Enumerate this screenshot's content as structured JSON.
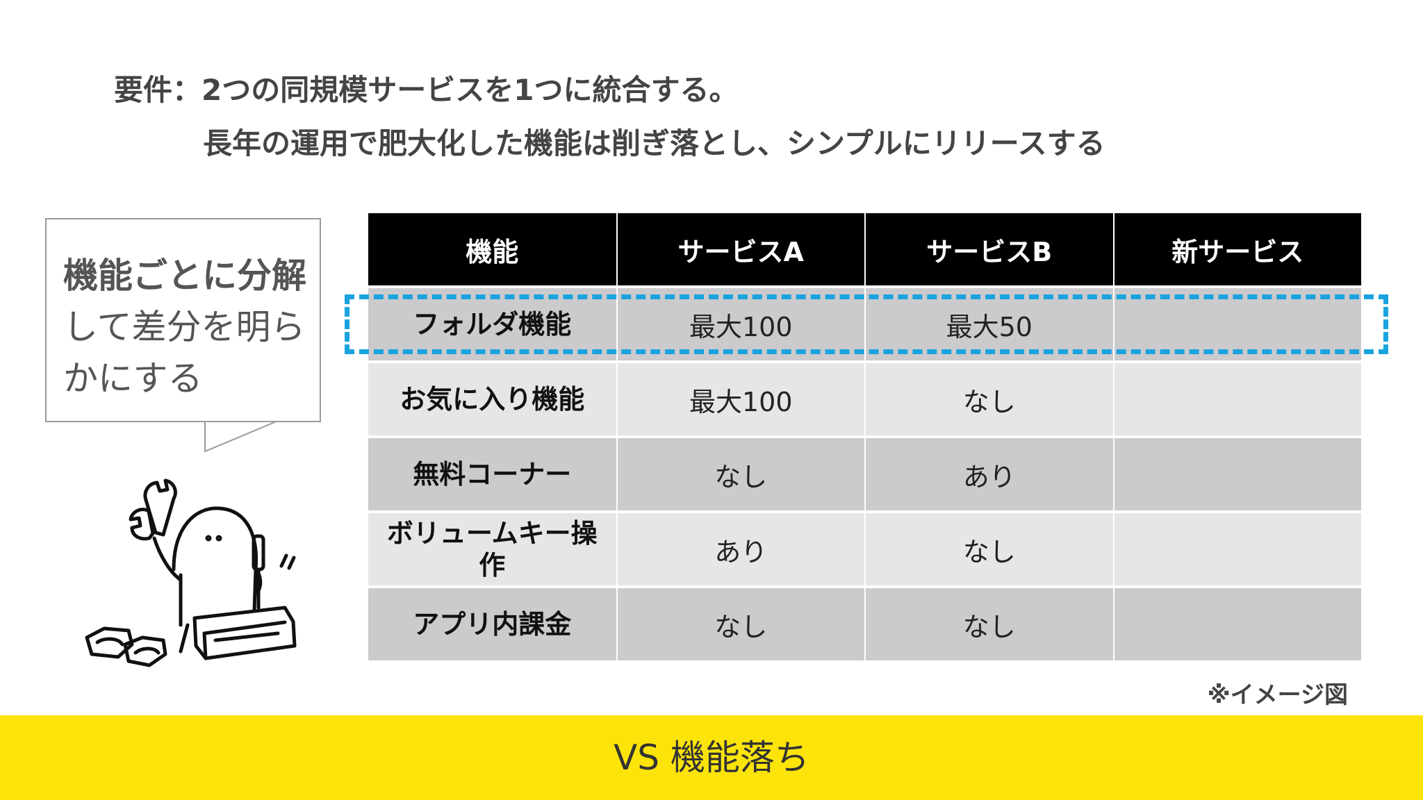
{
  "requirement": {
    "line1": "要件：2つの同規模サービスを1つに統合する。",
    "line2": "長年の運用で肥大化した機能は削ぎ落とし、シンプルにリリースする"
  },
  "bubble": {
    "bold_text": "機能ごとに分解",
    "text": "して差分を明らかにする"
  },
  "table": {
    "headers": [
      "機能",
      "サービスA",
      "サービスB",
      "新サービス"
    ],
    "rows": [
      {
        "feature": "フォルダ機能",
        "service_a": "最大100",
        "service_b": "最大50",
        "new_service": ""
      },
      {
        "feature": "お気に入り機能",
        "service_a": "最大100",
        "service_b": "なし",
        "new_service": ""
      },
      {
        "feature": "無料コーナー",
        "service_a": "なし",
        "service_b": "あり",
        "new_service": ""
      },
      {
        "feature": "ボリュームキー操作",
        "service_a": "あり",
        "service_b": "なし",
        "new_service": ""
      },
      {
        "feature": "アプリ内課金",
        "service_a": "なし",
        "service_b": "なし",
        "new_service": ""
      }
    ],
    "highlighted_row": 0
  },
  "note": "※イメージ図",
  "footer": {
    "text": "VS 機能落ち"
  },
  "colors": {
    "header_bg": "#000000",
    "row_dark": "#cbcacd",
    "row_light": "#e6e5e8",
    "highlight_dash": "#1aa3df",
    "footer_bg": "#fce40a"
  },
  "icons": {
    "mascot": "mechanic-mascot-with-wrench-and-screwdriver"
  }
}
